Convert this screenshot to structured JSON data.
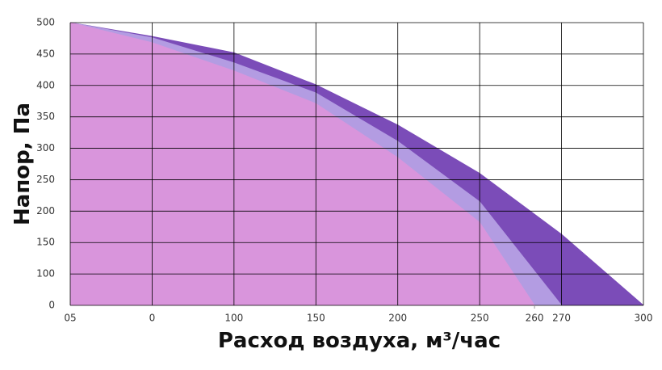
{
  "chart_data": {
    "type": "area",
    "x_label": "Расход воздуха, м³/час",
    "y_label": "Напор, Па",
    "xlim": [
      0,
      350
    ],
    "xticks": [
      {
        "value": 0,
        "label": "05"
      },
      {
        "value": 50,
        "label": "0"
      },
      100,
      150,
      200,
      250,
      {
        "value": 283.5,
        "label": "260"
      },
      {
        "value": 300,
        "label": "270"
      },
      {
        "value": 350,
        "label": "300"
      }
    ],
    "ylim": [
      50,
      500
    ],
    "yticks": [
      {
        "value": 50,
        "label": "0"
      },
      100,
      150,
      200,
      250,
      300,
      350,
      400,
      450,
      500
    ],
    "grid": true,
    "series": [
      {
        "color": "#7b4cb8",
        "x": [
          0,
          50,
          100,
          150,
          200,
          250,
          300,
          350
        ],
        "values": [
          500,
          478,
          452,
          401,
          337,
          260,
          163,
          50
        ]
      },
      {
        "color": "#b39ce2",
        "x": [
          0,
          50,
          100,
          150,
          200,
          250,
          300
        ],
        "values": [
          500,
          476,
          436,
          388,
          311,
          215,
          50
        ]
      },
      {
        "color": "#d995dc",
        "x": [
          0,
          50,
          100,
          150,
          200,
          250,
          283.5
        ],
        "values": [
          500,
          468,
          423,
          371,
          285,
          182,
          50
        ]
      }
    ]
  }
}
